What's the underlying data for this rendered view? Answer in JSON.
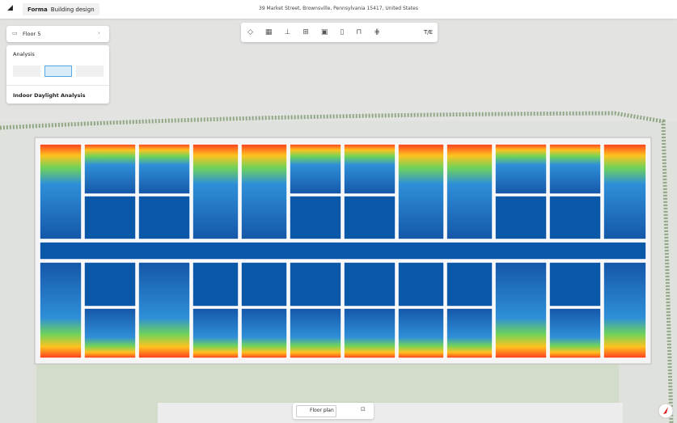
{
  "header": {
    "logo": "Forma",
    "mode": "Building design",
    "address": "39 Market Street, Brownsville, Pennsylvania 15417, United States"
  },
  "sidebar": {
    "floor": "Floor 5",
    "analysis": "Analysis",
    "analysis_name": "Indoor Daylight Analysis"
  },
  "toolbar": {
    "te": "T/E"
  },
  "bottom": {
    "view": "Floor plan"
  }
}
